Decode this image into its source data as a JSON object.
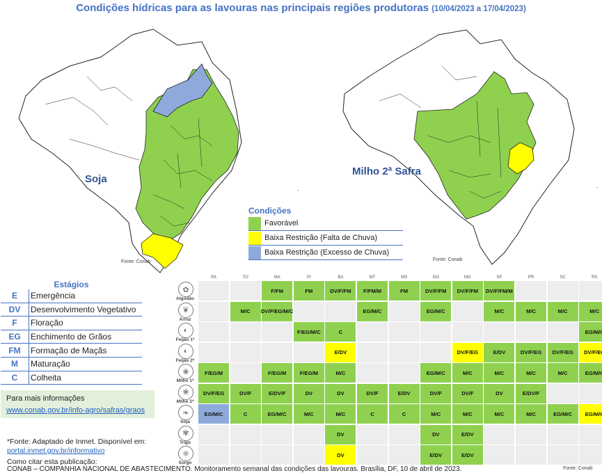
{
  "title": {
    "main": "Condições hídricas para as lavouras nas principais regiões produtoras",
    "range": "(10/04/2023 a 17/04/2023)"
  },
  "maps": [
    {
      "name": "Soja",
      "source": "Fonte: Conab"
    },
    {
      "name": "Milho 2ª Safra",
      "source": "Fonte: Conab"
    }
  ],
  "legend": {
    "title": "Condições",
    "items": [
      {
        "label": "Favorável",
        "color": "#8fd14f"
      },
      {
        "label": "Baixa Restrição (Falta de Chuva)",
        "color": "#ffff00"
      },
      {
        "label": "Baixa Restrição (Excesso de Chuva)",
        "color": "#8eaadb"
      }
    ]
  },
  "stages": {
    "title": "Estágios",
    "items": [
      {
        "code": "E",
        "name": "Emergência"
      },
      {
        "code": "DV",
        "name": "Desenvolvimento Vegetativo"
      },
      {
        "code": "F",
        "name": "Floração"
      },
      {
        "code": "EG",
        "name": "Enchimento de Grãos"
      },
      {
        "code": "FM",
        "name": "Formação de Maçãs"
      },
      {
        "code": "M",
        "name": "Maturação"
      },
      {
        "code": "C",
        "name": "Colheita"
      }
    ]
  },
  "info": {
    "label": "Para mais informações",
    "link": "www.conab.gov.br/info-agro/safras/graos"
  },
  "footnotes": {
    "source_line": "*Fonte: Adaptado de Inmet. Disponível em:",
    "source_link": "portal.inmet.gov.br/informativo",
    "cite_label": "Como citar esta publicação:",
    "citation": "CONAB – COMPANHIA NACIONAL DE ABASTECIMENTO. Monitoramento semanal das condições das lavouras. Brasília, DF, 10 de abril de 2023.",
    "table_source": "Fonte: Conab"
  },
  "table": {
    "states": [
      "PA",
      "TO",
      "MA",
      "PI",
      "BA",
      "MT",
      "MS",
      "GO",
      "MG",
      "SP",
      "PR",
      "SC",
      "RS"
    ],
    "crops": [
      "Algodão",
      "Arroz",
      "Feijão 1ª",
      "Feijão 2ª",
      "Milho 1ª",
      "Milho 2ª",
      "Soja",
      "Trigo",
      "Sorgo"
    ],
    "crop_icons": [
      "cotton-icon",
      "rice-icon",
      "bean-icon",
      "bean-icon",
      "corn-icon",
      "corn-icon",
      "soybean-icon",
      "wheat-icon",
      "sorghum-icon"
    ],
    "rows": [
      [
        null,
        null,
        [
          "F/FM",
          "g"
        ],
        [
          "FM",
          "g"
        ],
        [
          "DV/F/FM",
          "g"
        ],
        [
          "F/FM/M",
          "g"
        ],
        [
          "FM",
          "g"
        ],
        [
          "DV/F/FM",
          "g"
        ],
        [
          "DV/F/FM",
          "g"
        ],
        [
          "DV/F/FM/M",
          "g"
        ],
        null,
        null,
        null
      ],
      [
        null,
        [
          "M/C",
          "g"
        ],
        [
          "DV/F/EG/M/C",
          "g"
        ],
        null,
        null,
        [
          "EG/M/C",
          "g"
        ],
        null,
        [
          "EG/M/C",
          "g"
        ],
        null,
        [
          "M/C",
          "g"
        ],
        [
          "M/C",
          "g"
        ],
        [
          "M/C",
          "g"
        ],
        [
          "M/C",
          "g"
        ]
      ],
      [
        null,
        null,
        null,
        [
          "F/EG/M/C",
          "g"
        ],
        [
          "C",
          "g"
        ],
        null,
        null,
        null,
        null,
        null,
        null,
        null,
        [
          "EG/M/C",
          "g"
        ]
      ],
      [
        null,
        null,
        null,
        null,
        [
          "E/DV",
          "y"
        ],
        null,
        null,
        null,
        [
          "DV/F/EG",
          "y"
        ],
        [
          "E/DV",
          "g"
        ],
        [
          "DV/F/EG",
          "g"
        ],
        [
          "DV/F/EG",
          "g"
        ],
        [
          "DV/F/EG",
          "y"
        ]
      ],
      [
        [
          "F/EG/M",
          "g"
        ],
        null,
        [
          "F/EG/M",
          "g"
        ],
        [
          "F/EG/M",
          "g"
        ],
        [
          "M/C",
          "g"
        ],
        null,
        null,
        [
          "EG/M/C",
          "g"
        ],
        [
          "M/C",
          "g"
        ],
        [
          "M/C",
          "g"
        ],
        [
          "M/C",
          "g"
        ],
        [
          "M/C",
          "g"
        ],
        [
          "EG/M/C",
          "g"
        ]
      ],
      [
        [
          "DV/F/EG",
          "g"
        ],
        [
          "DV/F",
          "g"
        ],
        [
          "E/DV/F",
          "g"
        ],
        [
          "DV",
          "g"
        ],
        [
          "DV",
          "g"
        ],
        [
          "DV/F",
          "g"
        ],
        [
          "E/DV",
          "g"
        ],
        [
          "DV/F",
          "g"
        ],
        [
          "DV/F",
          "g"
        ],
        [
          "DV",
          "g"
        ],
        [
          "E/DV/F",
          "g"
        ],
        null,
        null
      ],
      [
        [
          "EG/M/C",
          "b"
        ],
        [
          "C",
          "g"
        ],
        [
          "EG/M/C",
          "g"
        ],
        [
          "M/C",
          "g"
        ],
        [
          "M/C",
          "g"
        ],
        [
          "C",
          "g"
        ],
        [
          "C",
          "g"
        ],
        [
          "M/C",
          "g"
        ],
        [
          "M/C",
          "g"
        ],
        [
          "M/C",
          "g"
        ],
        [
          "M/C",
          "g"
        ],
        [
          "EG/M/C",
          "g"
        ],
        [
          "EG/M/C",
          "y"
        ]
      ],
      [
        null,
        null,
        null,
        null,
        [
          "DV",
          "g"
        ],
        null,
        null,
        [
          "DV",
          "g"
        ],
        [
          "E/DV",
          "g"
        ],
        null,
        null,
        null,
        null
      ],
      [
        null,
        null,
        null,
        null,
        [
          "DV",
          "y"
        ],
        null,
        null,
        [
          "E/DV",
          "g"
        ],
        [
          "E/DV",
          "g"
        ],
        null,
        null,
        null,
        null
      ]
    ],
    "colors": {
      "g": "#8fd14f",
      "y": "#ffff00",
      "b": "#8eaadb",
      "empty": "#ededed"
    }
  }
}
